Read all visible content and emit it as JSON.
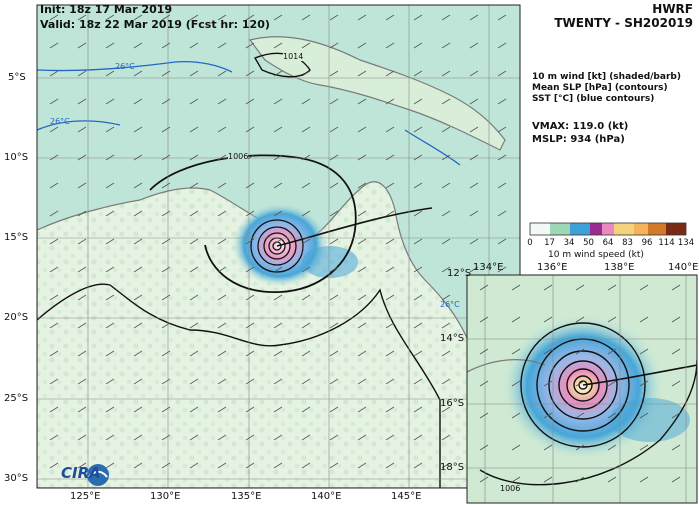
{
  "header": {
    "init_line": "Init: 18z 17 Mar 2019",
    "valid_line": "Valid: 18z 22 Mar 2019 (Fcst hr: 120)",
    "model": "HWRF",
    "storm": "TWENTY - SH202019"
  },
  "legend": {
    "line1": "10 m wind [kt] (shaded/barb)",
    "line2": "Mean SLP [hPa] (contours)",
    "line3": "SST [°C] (blue contours)"
  },
  "stats": {
    "vmax": "VMAX: 119.0 (kt)",
    "mslp": "MSLP:  934 (hPa)"
  },
  "colorbar": {
    "title": "10 m wind speed (kt)",
    "ticks": [
      "0",
      "17",
      "34",
      "50",
      "64",
      "83",
      "96",
      "114",
      "134"
    ],
    "tick_values": [
      0,
      17,
      34,
      50,
      64,
      83,
      96,
      114,
      134
    ]
  },
  "main_map": {
    "lat_labels": [
      "5°S",
      "10°S",
      "15°S",
      "20°S",
      "25°S",
      "30°S"
    ],
    "lon_labels": [
      "125°E",
      "130°E",
      "135°E",
      "140°E",
      "145°E"
    ],
    "contour_labels": [
      "1014",
      "1006"
    ],
    "sst_labels": [
      "26°C",
      "26°C",
      "26°C"
    ]
  },
  "inset_map": {
    "lat_labels": [
      "12°S",
      "14°S",
      "16°S",
      "18°S"
    ],
    "lon_labels": [
      "134°E",
      "136°E",
      "138°E",
      "140°E"
    ],
    "contour_labels": [
      "1006"
    ]
  },
  "logo_text": "CIRA",
  "colors": {
    "ocean": "#bfe5d8",
    "land": "#e4f2dc",
    "calm": "#eaf6ee",
    "wind_34": "#3fa0d8",
    "wind_50": "#9bb8e8",
    "wind_64": "#e88abf",
    "wind_83": "#f4b35a",
    "coast": "#7a7a7a",
    "sst": "#2466c8",
    "slp": "#111111"
  }
}
